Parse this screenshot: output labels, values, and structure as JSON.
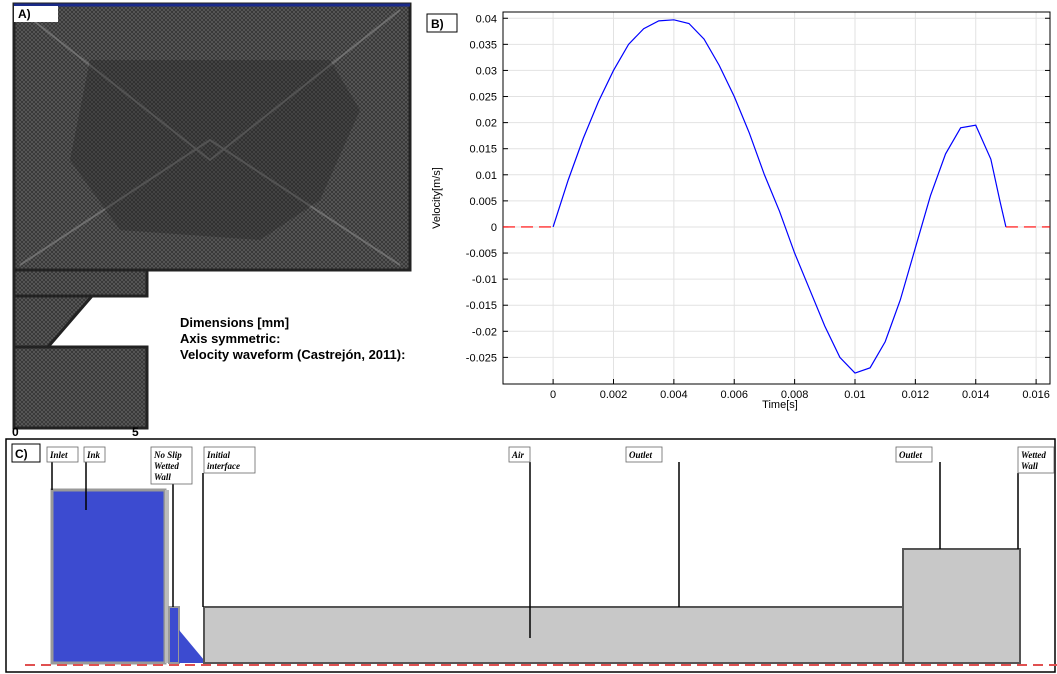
{
  "panel_a": {
    "label": "A)",
    "notes": [
      "Dimensions [mm]",
      "Axis symmetric:",
      "Velocity  waveform (Castrejón, 2011):"
    ],
    "scale": [
      "0",
      "5"
    ]
  },
  "panel_b": {
    "label": "B)"
  },
  "chart_data": {
    "type": "line",
    "xlabel": "Time[s]",
    "ylabel": "Velocity[m/s]",
    "xlim": [
      -0.00166,
      0.01646
    ],
    "ylim": [
      -0.0301,
      0.0412
    ],
    "xticks": [
      0,
      0.002,
      0.004,
      0.006,
      0.008,
      0.01,
      0.012,
      0.014,
      0.016
    ],
    "yticks": [
      0.04,
      0.035,
      0.03,
      0.025,
      0.02,
      0.015,
      0.01,
      0.005,
      0,
      -0.005,
      -0.01,
      -0.015,
      -0.02,
      -0.025
    ],
    "grid": true,
    "series": [
      {
        "color": "#0000ff",
        "line_style": "solid",
        "x": [
          0,
          0.0005,
          0.001,
          0.0015,
          0.002,
          0.0025,
          0.003,
          0.0035,
          0.004,
          0.0045,
          0.005,
          0.0055,
          0.006,
          0.0065,
          0.007,
          0.0075,
          0.008,
          0.0085,
          0.009,
          0.0095,
          0.01,
          0.0105,
          0.011,
          0.0115,
          0.012,
          0.0125,
          0.013,
          0.0135,
          0.014,
          0.0145,
          0.0148,
          0.015
        ],
        "values": [
          0,
          0.009,
          0.017,
          0.024,
          0.03,
          0.035,
          0.038,
          0.0395,
          0.0397,
          0.039,
          0.036,
          0.031,
          0.025,
          0.018,
          0.01,
          0.003,
          -0.005,
          -0.012,
          -0.019,
          -0.025,
          -0.028,
          -0.027,
          -0.022,
          -0.014,
          -0.004,
          0.006,
          0.014,
          0.019,
          0.0195,
          0.013,
          0.005,
          0
        ]
      },
      {
        "color": "#ff0000",
        "line_style": "dashed",
        "x": [
          -0.00166,
          0
        ],
        "values": [
          0,
          0
        ]
      },
      {
        "color": "#ff0000",
        "line_style": "dashed",
        "x": [
          0.015,
          0.01646
        ],
        "values": [
          0,
          0
        ]
      }
    ]
  },
  "panel_c": {
    "label": "C)",
    "callouts": [
      {
        "lines": [
          "Inlet"
        ]
      },
      {
        "lines": [
          "Ink"
        ]
      },
      {
        "lines": [
          "No Slip",
          "Wetted",
          "Wall"
        ]
      },
      {
        "lines": [
          "Initial",
          "interface"
        ]
      },
      {
        "lines": [
          "Air"
        ]
      },
      {
        "lines": [
          "Outlet"
        ]
      },
      {
        "lines": [
          "Outlet"
        ]
      },
      {
        "lines": [
          "Wetted",
          "Wall"
        ]
      }
    ]
  }
}
